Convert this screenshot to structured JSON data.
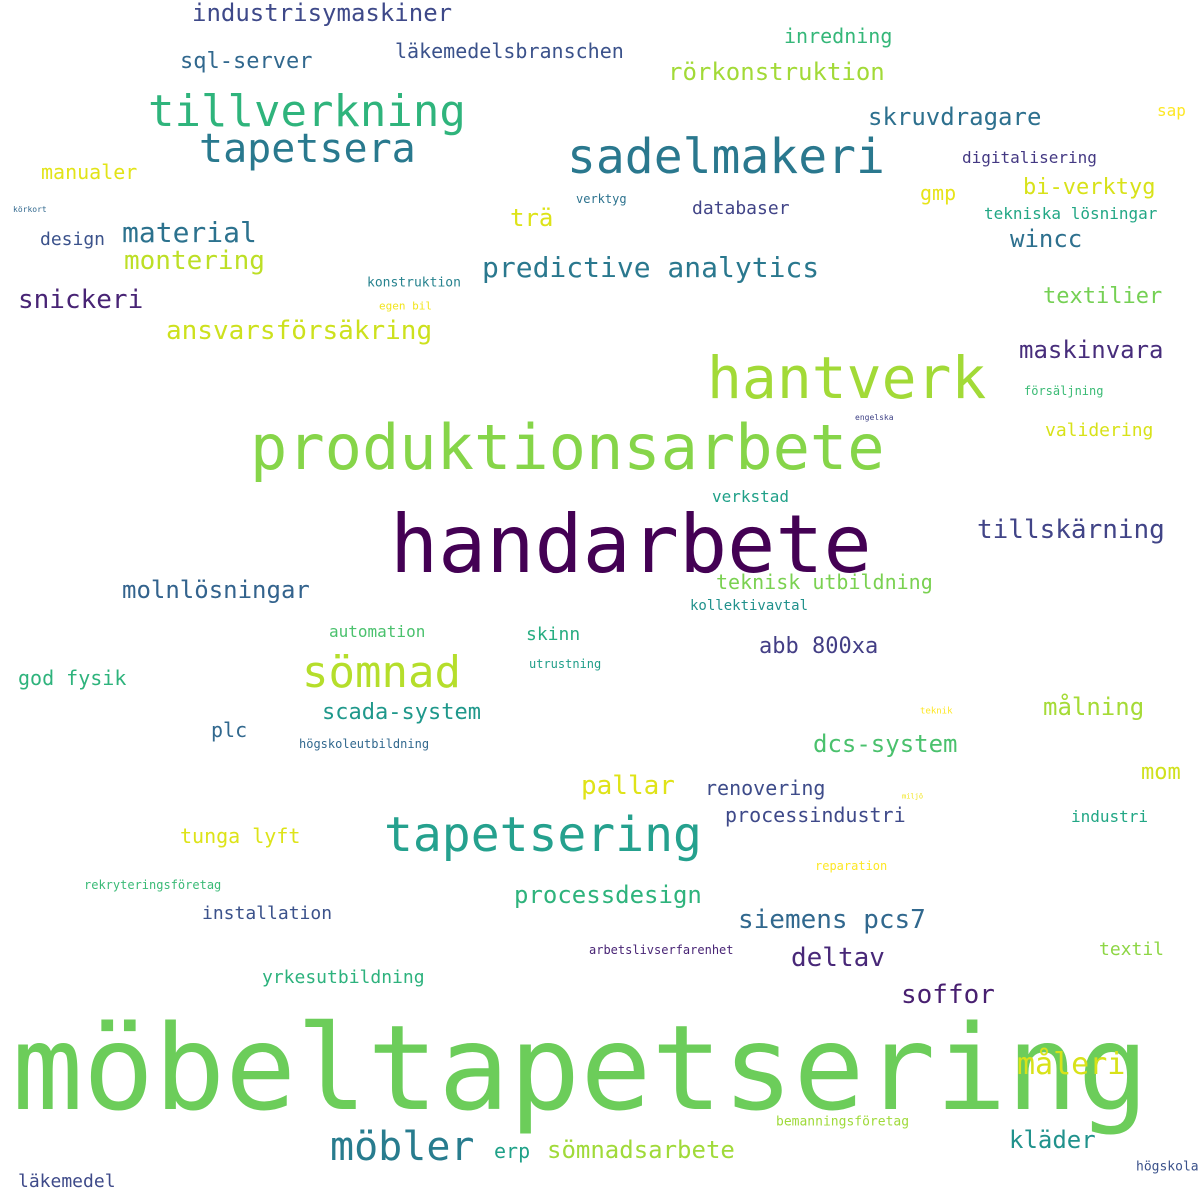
{
  "words": [
    {
      "text": "möbeltapetsering",
      "color": "#6ccd5a"
    },
    {
      "text": "handarbete",
      "color": "#440154"
    },
    {
      "text": "produktionsarbete",
      "color": "#86d549"
    },
    {
      "text": "hantverk",
      "color": "#a2da37"
    },
    {
      "text": "tapetsering",
      "color": "#25a18e"
    },
    {
      "text": "sadelmakeri",
      "color": "#2a788e"
    },
    {
      "text": "tillverkning",
      "color": "#2fb47c"
    },
    {
      "text": "sömnad",
      "color": "#b5de2b"
    },
    {
      "text": "tapetsera",
      "color": "#29798e"
    },
    {
      "text": "möbler",
      "color": "#287c8e"
    },
    {
      "text": "predictive analytics",
      "color": "#2a788e"
    },
    {
      "text": "material",
      "color": "#2c728e"
    },
    {
      "text": "montering",
      "color": "#bddf26"
    },
    {
      "text": "ansvarsförsäkring",
      "color": "#cde11d"
    },
    {
      "text": "snickeri",
      "color": "#482475"
    },
    {
      "text": "industrisymaskiner",
      "color": "#3e4989"
    },
    {
      "text": "rörkonstruktion",
      "color": "#a2da37"
    },
    {
      "text": "skruvdragare",
      "color": "#2d708e"
    },
    {
      "text": "sql-server",
      "color": "#31688e"
    },
    {
      "text": "läkemedelsbranschen",
      "color": "#3b528b"
    },
    {
      "text": "inredning",
      "color": "#35b779"
    },
    {
      "text": "manualer",
      "color": "#e2e418"
    },
    {
      "text": "design",
      "color": "#3b528b"
    },
    {
      "text": "trä",
      "color": "#dde318"
    },
    {
      "text": "databaser",
      "color": "#414487"
    },
    {
      "text": "bi-verktyg",
      "color": "#d8e219"
    },
    {
      "text": "gmp",
      "color": "#e7e419"
    },
    {
      "text": "wincc",
      "color": "#2d708e"
    },
    {
      "text": "textilier",
      "color": "#75d054"
    },
    {
      "text": "maskinvara",
      "color": "#472d7b"
    },
    {
      "text": "tillskärning",
      "color": "#414487"
    },
    {
      "text": "molnlösningar",
      "color": "#33638d"
    },
    {
      "text": "teknisk utbildning",
      "color": "#7ad151"
    },
    {
      "text": "abb 800xa",
      "color": "#433e85"
    },
    {
      "text": "scada-system",
      "color": "#1f988b"
    },
    {
      "text": "dcs-system",
      "color": "#4ac16d"
    },
    {
      "text": "målning",
      "color": "#a5db36"
    },
    {
      "text": "mom",
      "color": "#d0e11c"
    },
    {
      "text": "pallar",
      "color": "#dfe318"
    },
    {
      "text": "renovering",
      "color": "#3e4c8a"
    },
    {
      "text": "processindustri",
      "color": "#3e4989"
    },
    {
      "text": "processdesign",
      "color": "#2eb37c"
    },
    {
      "text": "siemens pcs7",
      "color": "#31688e"
    },
    {
      "text": "deltav",
      "color": "#482878"
    },
    {
      "text": "soffor",
      "color": "#481f70"
    },
    {
      "text": "måleri",
      "color": "#d8e219"
    },
    {
      "text": "kläder",
      "color": "#20928c"
    },
    {
      "text": "sömnadsarbete",
      "color": "#a0da39"
    },
    {
      "text": "erp",
      "color": "#1fa188"
    },
    {
      "text": "läkemedel",
      "color": "#3e4a89"
    },
    {
      "text": "god fysik",
      "color": "#2eb37c"
    },
    {
      "text": "plc",
      "color": "#31688e"
    },
    {
      "text": "tunga lyft",
      "color": "#dde318"
    },
    {
      "text": "installation",
      "color": "#3b528b"
    },
    {
      "text": "yrkesutbildning",
      "color": "#2db27d"
    },
    {
      "text": "automation",
      "color": "#4ac16d"
    },
    {
      "text": "skinn",
      "color": "#27ad81"
    },
    {
      "text": "verkstad",
      "color": "#1fa088"
    },
    {
      "text": "kollektivavtal",
      "color": "#21918c"
    },
    {
      "text": "validering",
      "color": "#d8e219"
    },
    {
      "text": "industri",
      "color": "#22a785"
    },
    {
      "text": "textil",
      "color": "#8ed645"
    },
    {
      "text": "digitalisering",
      "color": "#443983"
    },
    {
      "text": "tekniska lösningar",
      "color": "#22a785"
    },
    {
      "text": "sap",
      "color": "#fde725"
    },
    {
      "text": "verktyg",
      "color": "#2c728e"
    },
    {
      "text": "konstruktion",
      "color": "#26828e"
    },
    {
      "text": "egen bil",
      "color": "#f1e51d"
    },
    {
      "text": "försäljning",
      "color": "#3bbb75"
    },
    {
      "text": "engelska",
      "color": "#414487"
    },
    {
      "text": "körkort",
      "color": "#31688e"
    },
    {
      "text": "utrustning",
      "color": "#1f9e89"
    },
    {
      "text": "högskoleutbildning",
      "color": "#31688e"
    },
    {
      "text": "arbetslivserfarenhet",
      "color": "#482475"
    },
    {
      "text": "rekryteringsföretag",
      "color": "#3aba76"
    },
    {
      "text": "reparation",
      "color": "#fde725"
    },
    {
      "text": "bemanningsföretag",
      "color": "#9fda3a"
    },
    {
      "text": "högskola",
      "color": "#3b528b"
    },
    {
      "text": "teknik",
      "color": "#fde725"
    },
    {
      "text": "miljö",
      "color": "#f1e51d"
    }
  ]
}
